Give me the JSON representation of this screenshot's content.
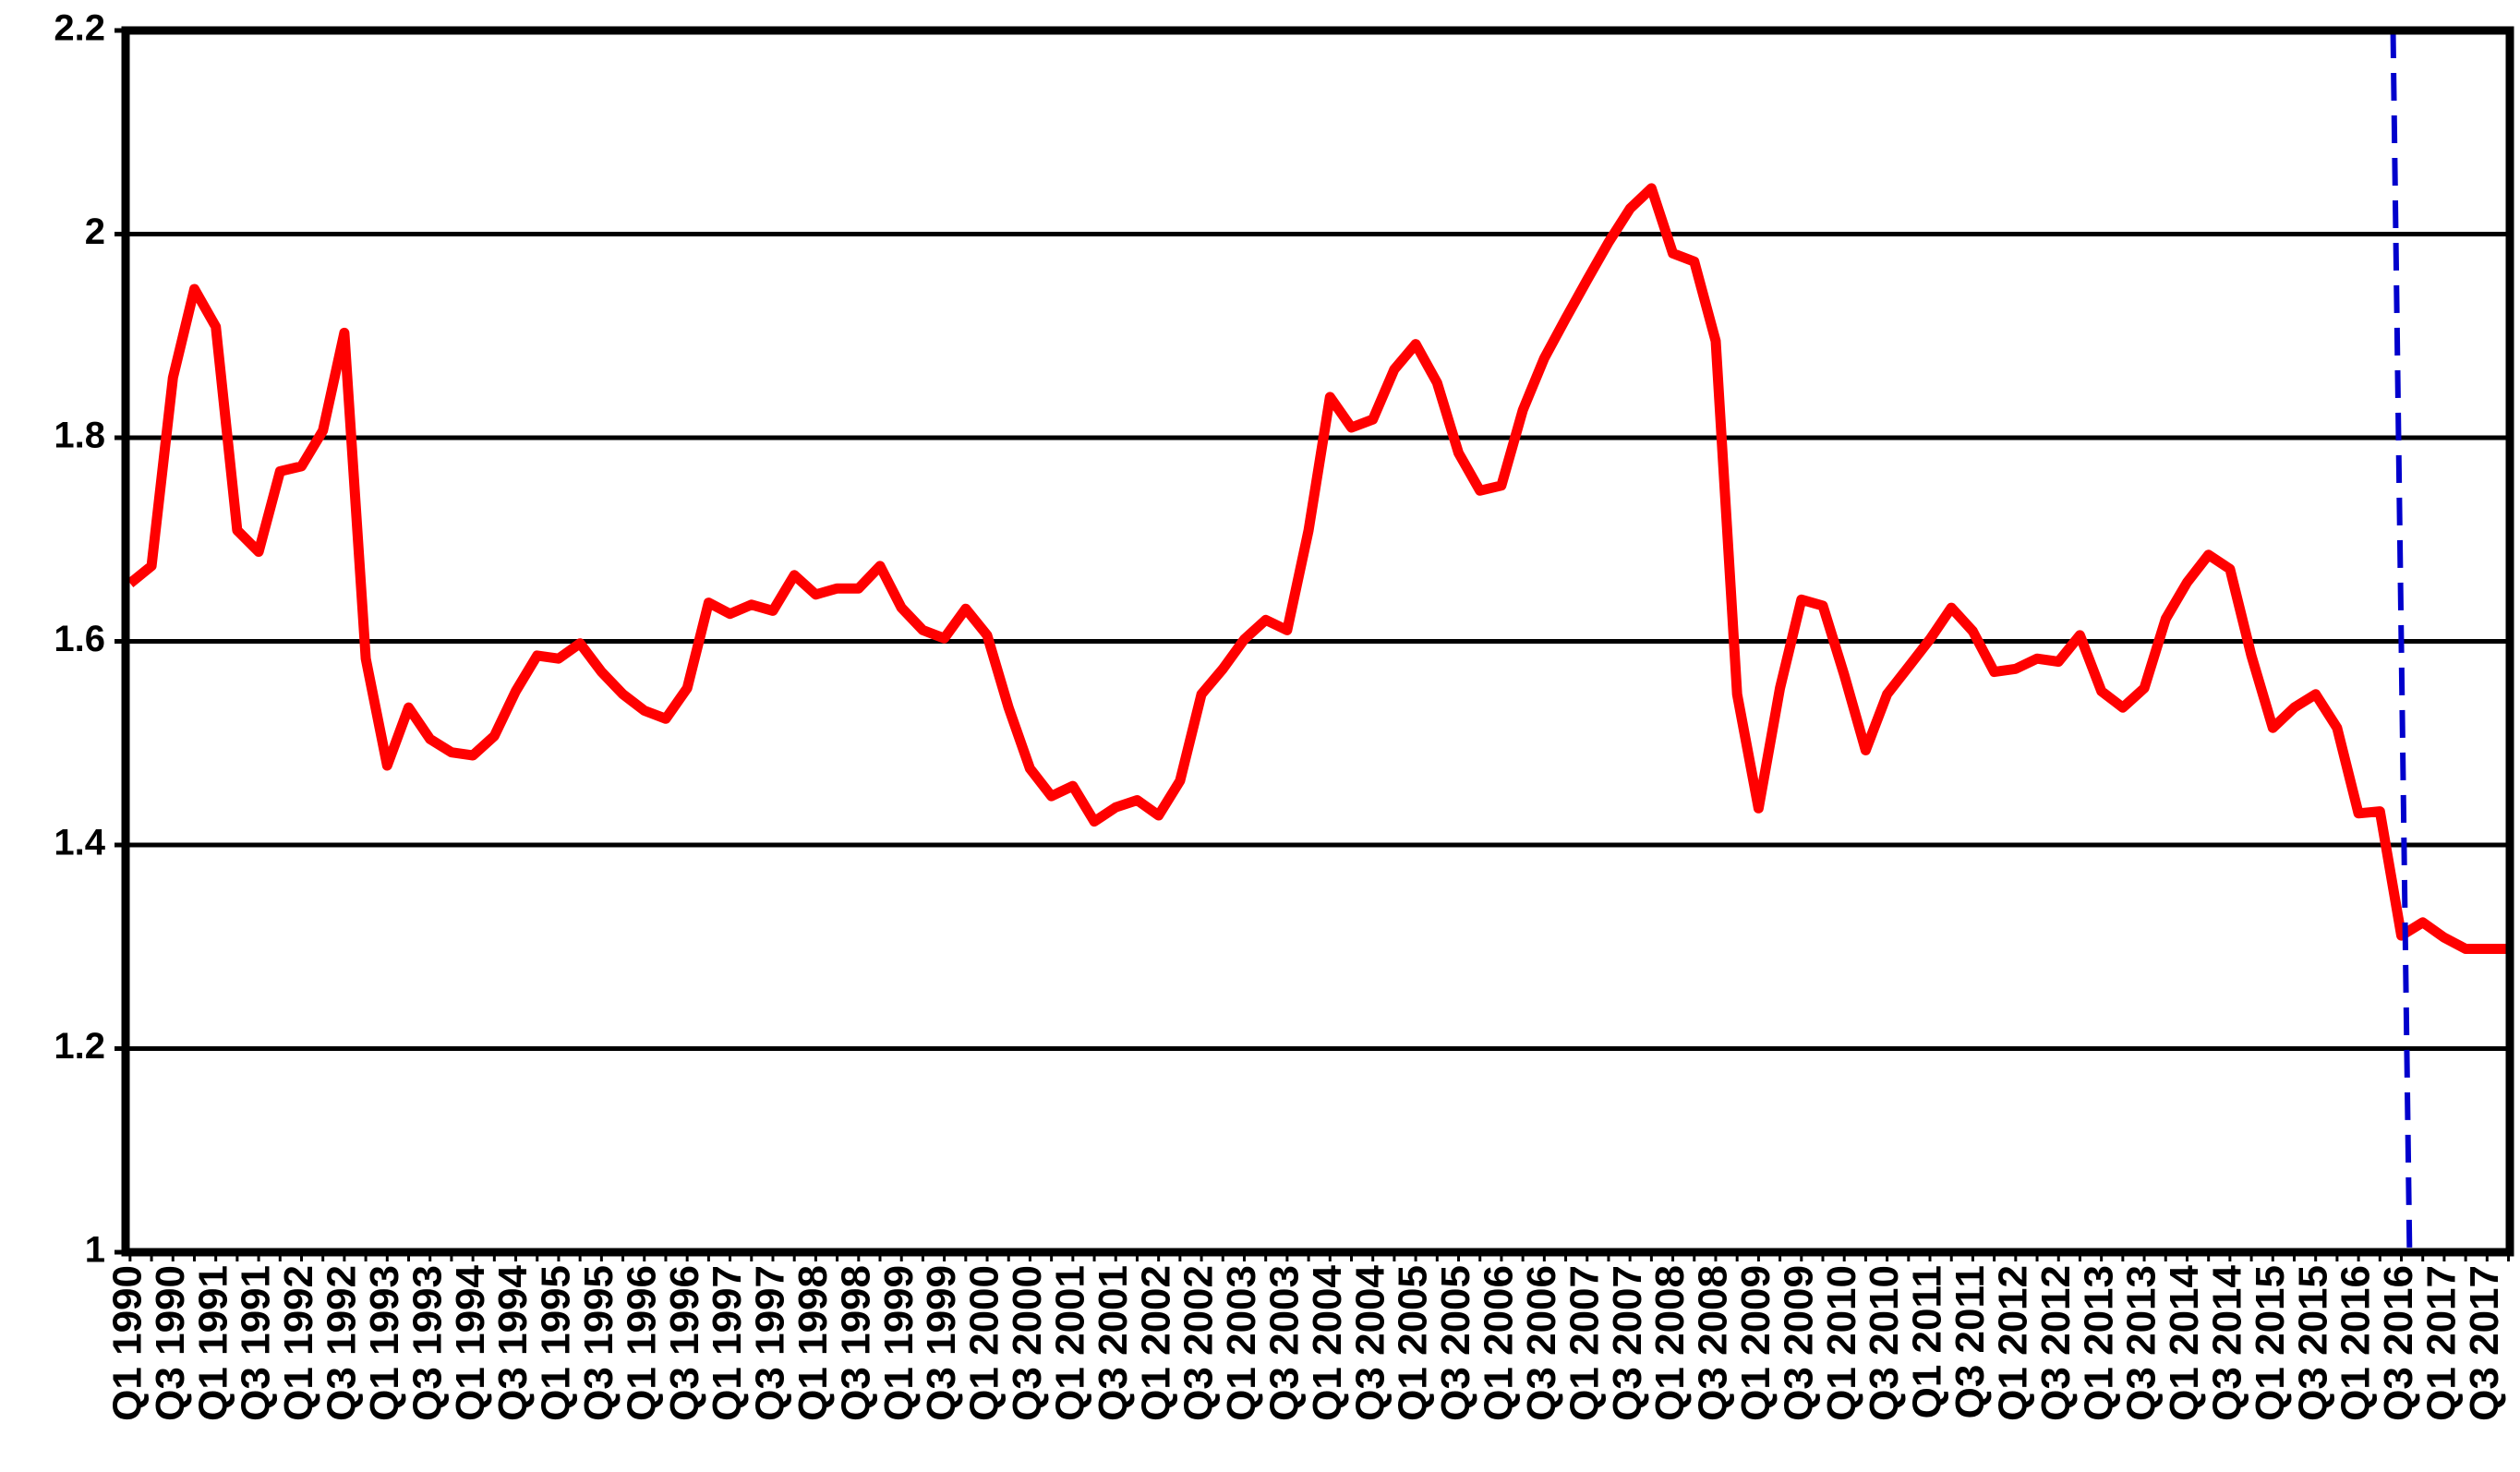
{
  "chart_data": {
    "type": "line",
    "categories": [
      "Q1 1990",
      null,
      "Q3 1990",
      null,
      "Q1 1991",
      null,
      "Q3 1991",
      null,
      "Q1 1992",
      null,
      "Q3 1992",
      null,
      "Q1 1993",
      null,
      "Q3 1993",
      null,
      "Q1 1994",
      null,
      "Q3 1994",
      null,
      "Q1 1995",
      null,
      "Q3 1995",
      null,
      "Q1 1996",
      null,
      "Q3 1996",
      null,
      "Q1 1997",
      null,
      "Q3 1997",
      null,
      "Q1 1998",
      null,
      "Q3 1998",
      null,
      "Q1 1999",
      null,
      "Q3 1999",
      null,
      "Q1 2000",
      null,
      "Q3 2000",
      null,
      "Q1 2001",
      null,
      "Q3 2001",
      null,
      "Q1 2002",
      null,
      "Q3 2002",
      null,
      "Q1 2003",
      null,
      "Q3 2003",
      null,
      "Q1 2004",
      null,
      "Q3 2004",
      null,
      "Q1 2005",
      null,
      "Q3 2005",
      null,
      "Q1 2006",
      null,
      "Q3 2006",
      null,
      "Q1 2007",
      null,
      "Q3 2007",
      null,
      "Q1 2008",
      null,
      "Q3 2008",
      null,
      "Q1 2009",
      null,
      "Q3 2009",
      null,
      "Q1 2010",
      null,
      "Q3 2010",
      null,
      "Q1 2011",
      null,
      "Q3 2011",
      null,
      "Q1 2012",
      null,
      "Q3 2012",
      null,
      "Q1 2013",
      null,
      "Q3 2013",
      null,
      "Q1 2014",
      null,
      "Q3 2014",
      null,
      "Q1 2015",
      null,
      "Q3 2015",
      null,
      "Q1 2016",
      null,
      "Q3 2016",
      null,
      "Q1 2017",
      null,
      "Q3 2017",
      null
    ],
    "values": [
      1.657,
      1.674,
      1.859,
      1.946,
      1.909,
      1.709,
      1.688,
      1.767,
      1.772,
      1.807,
      1.903,
      1.583,
      1.478,
      1.535,
      1.504,
      1.491,
      1.488,
      1.507,
      1.551,
      1.586,
      1.583,
      1.598,
      1.57,
      1.548,
      1.532,
      1.524,
      1.554,
      1.638,
      1.627,
      1.636,
      1.63,
      1.665,
      1.646,
      1.652,
      1.652,
      1.674,
      1.633,
      1.611,
      1.603,
      1.632,
      1.606,
      1.535,
      1.475,
      1.448,
      1.458,
      1.423,
      1.437,
      1.444,
      1.429,
      1.463,
      1.548,
      1.573,
      1.602,
      1.621,
      1.611,
      1.709,
      1.84,
      1.81,
      1.818,
      1.867,
      1.892,
      1.854,
      1.785,
      1.748,
      1.753,
      1.827,
      1.878,
      1.917,
      1.955,
      1.992,
      2.025,
      2.045,
      1.981,
      1.973,
      1.895,
      1.548,
      1.436,
      1.554,
      1.641,
      1.635,
      1.567,
      1.493,
      1.548,
      1.575,
      1.602,
      1.633,
      1.61,
      1.57,
      1.573,
      1.583,
      1.58,
      1.606,
      1.551,
      1.535,
      1.554,
      1.622,
      1.658,
      1.685,
      1.671,
      1.586,
      1.515,
      1.535,
      1.548,
      1.515,
      1.431,
      1.433,
      1.311,
      1.324,
      1.309,
      1.298,
      1.298,
      1.298
    ],
    "color": "#ff0000",
    "ylim": [
      1,
      2.2
    ],
    "yticks": [
      1,
      1.2,
      1.4,
      1.6,
      1.8,
      2,
      2.2
    ],
    "grid": true,
    "vline": {
      "x": "Q3 2016",
      "color": "#0000cc"
    }
  }
}
